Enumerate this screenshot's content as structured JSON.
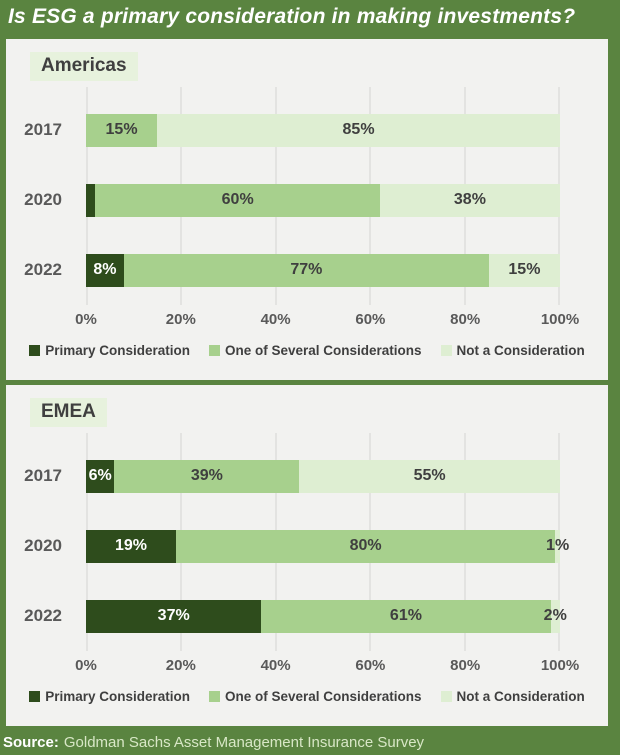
{
  "title": "Is ESG a primary consideration in making investments?",
  "source": {
    "label": "Source:",
    "text": "Goldman Sachs Asset Management Insurance Survey"
  },
  "colors": {
    "frame": "#5a8440",
    "panel_bg": "#f2f2f0",
    "gridline": "#e3e3e1",
    "primary": "#2e4c1c",
    "several": "#a7d08d",
    "not": "#deeed2",
    "label_text": "#3f3f3f",
    "label_text_on_dark": "#ffffff"
  },
  "legend": [
    {
      "key": "primary",
      "label": "Primary Consideration"
    },
    {
      "key": "several",
      "label": "One of Several Considerations"
    },
    {
      "key": "not",
      "label": "Not a Consideration"
    }
  ],
  "axis": {
    "ticks": [
      "0%",
      "20%",
      "40%",
      "60%",
      "80%",
      "100%"
    ],
    "positions": [
      0,
      20,
      40,
      60,
      80,
      100
    ]
  },
  "panels": [
    {
      "name": "Americas",
      "rows": [
        {
          "year": "2017",
          "segments": [
            {
              "key": "primary",
              "value": 0,
              "label": ""
            },
            {
              "key": "several",
              "value": 15,
              "label": "15%"
            },
            {
              "key": "not",
              "value": 85,
              "label": "85%"
            }
          ]
        },
        {
          "year": "2020",
          "segments": [
            {
              "key": "primary",
              "value": 2,
              "label": ""
            },
            {
              "key": "several",
              "value": 60,
              "label": "60%"
            },
            {
              "key": "not",
              "value": 38,
              "label": "38%"
            }
          ]
        },
        {
          "year": "2022",
          "segments": [
            {
              "key": "primary",
              "value": 8,
              "label": "8%"
            },
            {
              "key": "several",
              "value": 77,
              "label": "77%"
            },
            {
              "key": "not",
              "value": 15,
              "label": "15%"
            }
          ]
        }
      ]
    },
    {
      "name": "EMEA",
      "rows": [
        {
          "year": "2017",
          "segments": [
            {
              "key": "primary",
              "value": 6,
              "label": "6%"
            },
            {
              "key": "several",
              "value": 39,
              "label": "39%"
            },
            {
              "key": "not",
              "value": 55,
              "label": "55%"
            }
          ]
        },
        {
          "year": "2020",
          "segments": [
            {
              "key": "primary",
              "value": 19,
              "label": "19%"
            },
            {
              "key": "several",
              "value": 80,
              "label": "80%"
            },
            {
              "key": "not",
              "value": 1,
              "label": "1%"
            }
          ]
        },
        {
          "year": "2022",
          "segments": [
            {
              "key": "primary",
              "value": 37,
              "label": "37%"
            },
            {
              "key": "several",
              "value": 61,
              "label": "61%"
            },
            {
              "key": "not",
              "value": 2,
              "label": "2%"
            }
          ]
        }
      ]
    }
  ],
  "chart_data": [
    {
      "type": "bar",
      "orientation": "horizontal",
      "stacked": true,
      "title": "Americas",
      "categories": [
        "2017",
        "2020",
        "2022"
      ],
      "series": [
        {
          "name": "Primary Consideration",
          "values": [
            0,
            2,
            8
          ]
        },
        {
          "name": "One of Several Considerations",
          "values": [
            15,
            60,
            77
          ]
        },
        {
          "name": "Not a Consideration",
          "values": [
            85,
            38,
            15
          ]
        }
      ],
      "xlabel": "",
      "ylabel": "",
      "xlim": [
        0,
        100
      ],
      "x_tick_labels": [
        "0%",
        "20%",
        "40%",
        "60%",
        "80%",
        "100%"
      ],
      "grid": true,
      "legend_position": "bottom"
    },
    {
      "type": "bar",
      "orientation": "horizontal",
      "stacked": true,
      "title": "EMEA",
      "categories": [
        "2017",
        "2020",
        "2022"
      ],
      "series": [
        {
          "name": "Primary Consideration",
          "values": [
            6,
            19,
            37
          ]
        },
        {
          "name": "One of Several Considerations",
          "values": [
            39,
            80,
            61
          ]
        },
        {
          "name": "Not a Consideration",
          "values": [
            55,
            1,
            2
          ]
        }
      ],
      "xlabel": "",
      "ylabel": "",
      "xlim": [
        0,
        100
      ],
      "x_tick_labels": [
        "0%",
        "20%",
        "40%",
        "60%",
        "80%",
        "100%"
      ],
      "grid": true,
      "legend_position": "bottom"
    }
  ]
}
